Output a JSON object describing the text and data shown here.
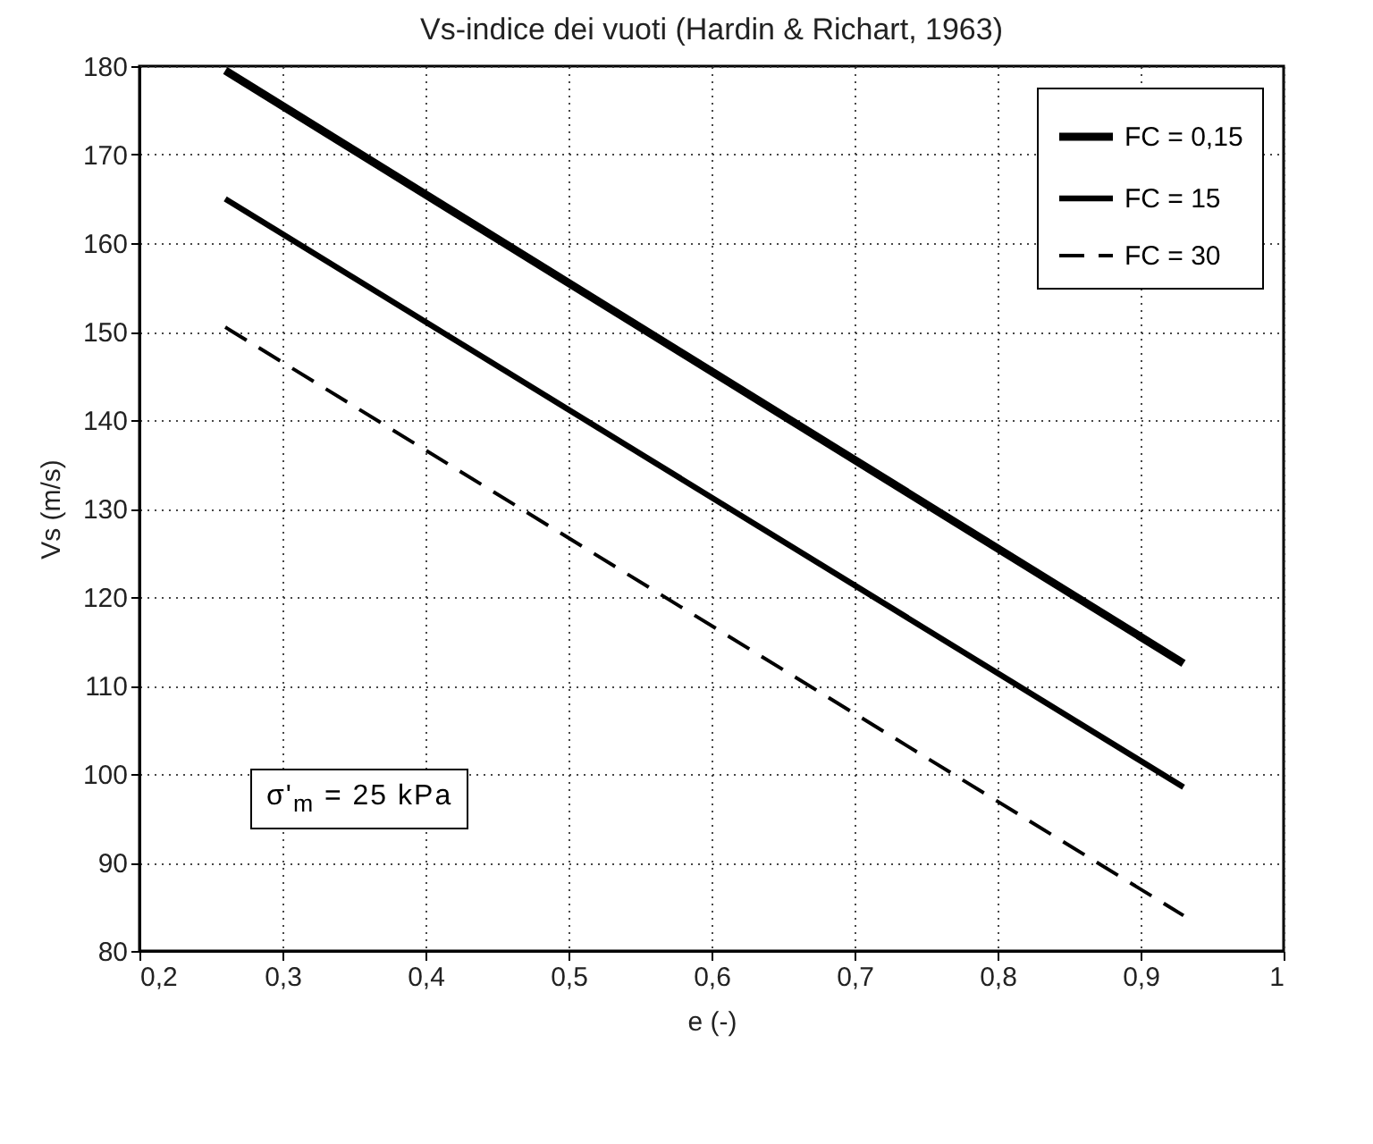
{
  "chart_data": {
    "type": "line",
    "title": "Vs-indice dei vuoti (Hardin & Richart, 1963)",
    "xlabel": "e (-)",
    "ylabel": "Vs (m/s)",
    "x": [
      0.26,
      0.93
    ],
    "series": [
      {
        "name": "FC = 0,15",
        "color": "#000000",
        "line_style": "solid",
        "values": [
          179.5,
          112.5
        ]
      },
      {
        "name": "FC = 15",
        "color": "#000000",
        "line_style": "solid",
        "values": [
          165,
          98.5
        ]
      },
      {
        "name": "FC = 30",
        "color": "#000000",
        "line_style": "dashed",
        "values": [
          150.5,
          84
        ]
      }
    ],
    "xlim": [
      0.2,
      1
    ],
    "xticks": [
      {
        "value": 0.2,
        "label": "0,2"
      },
      {
        "value": 0.3,
        "label": "0,3"
      },
      {
        "value": 0.4,
        "label": "0,4"
      },
      {
        "value": 0.5,
        "label": "0,5"
      },
      {
        "value": 0.6,
        "label": "0,6"
      },
      {
        "value": 0.7,
        "label": "0,7"
      },
      {
        "value": 0.8,
        "label": "0,8"
      },
      {
        "value": 0.9,
        "label": "0,9"
      },
      1
    ],
    "ylim": [
      80,
      180
    ],
    "yticks": [
      80,
      90,
      100,
      110,
      120,
      130,
      140,
      150,
      160,
      170,
      180
    ],
    "grid": true,
    "legend": "top right",
    "annotations": [
      "σ'$_{m}$ = 25 kPa"
    ]
  }
}
